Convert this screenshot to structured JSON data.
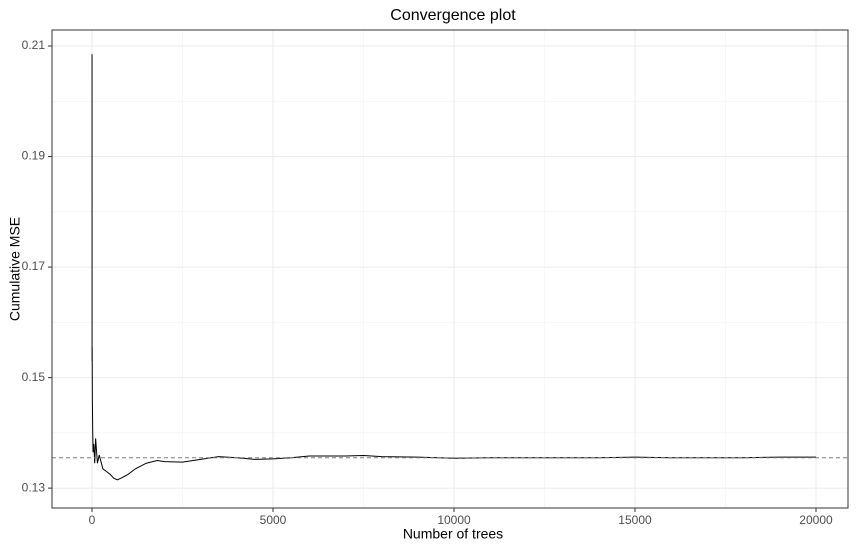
{
  "chart_data": {
    "type": "line",
    "title": "Convergence plot",
    "x_label": "Number of trees",
    "y_label": "Cumulative MSE",
    "x": [
      1,
      2,
      5,
      10,
      20,
      30,
      50,
      75,
      100,
      150,
      200,
      300,
      400,
      500,
      600,
      700,
      800,
      1000,
      1200,
      1500,
      1800,
      2000,
      2500,
      3000,
      3500,
      4000,
      4500,
      5000,
      5500,
      6000,
      7000,
      7500,
      8000,
      9000,
      10000,
      11000,
      12000,
      13000,
      14000,
      15000,
      16000,
      17000,
      18000,
      19000,
      20000
    ],
    "series": [
      {
        "name": "Cumulative MSE",
        "color": "#000000",
        "values": [
          0.2085,
          0.153,
          0.1555,
          0.146,
          0.14,
          0.1365,
          0.138,
          0.1345,
          0.139,
          0.1345,
          0.136,
          0.1335,
          0.133,
          0.1325,
          0.1318,
          0.1315,
          0.1318,
          0.1325,
          0.1335,
          0.1345,
          0.135,
          0.1348,
          0.1347,
          0.1352,
          0.1357,
          0.1355,
          0.1352,
          0.1353,
          0.1355,
          0.1358,
          0.1358,
          0.1359,
          0.1357,
          0.1356,
          0.1354,
          0.1355,
          0.1355,
          0.1355,
          0.1355,
          0.1356,
          0.1355,
          0.1355,
          0.1355,
          0.1356,
          0.1356
        ]
      }
    ],
    "reference_line": {
      "value": 0.1355,
      "color": "#7f7f7f",
      "dashed": true
    },
    "xlim": [
      -1105,
      20884
    ],
    "xticks": [
      0,
      5000,
      10000,
      15000,
      20000
    ],
    "ylim": [
      0.1264,
      0.2129
    ],
    "yticks": [
      0.13,
      0.15,
      0.17,
      0.19,
      0.21
    ],
    "grid": true
  }
}
